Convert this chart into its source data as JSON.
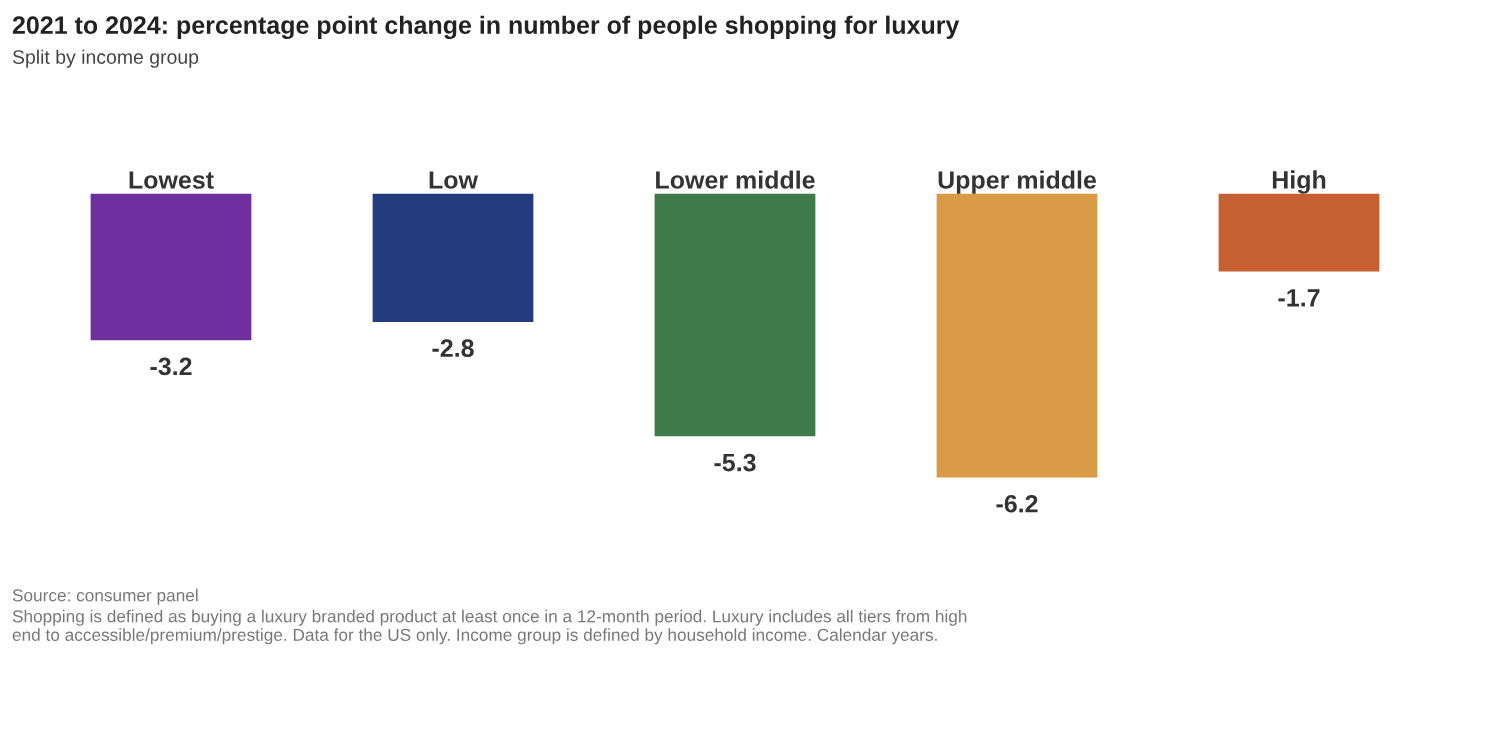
{
  "chart_data": {
    "type": "bar",
    "title": "2021 to 2024: percentage point change in number of people shopping for luxury",
    "subtitle": "Split by income group",
    "categories": [
      "Lowest",
      "Low",
      "Lower middle",
      "Upper middle",
      "High"
    ],
    "values": [
      -3.2,
      -2.8,
      -5.3,
      -6.2,
      -1.7
    ],
    "colors": [
      "#6f2f9f",
      "#233b7c",
      "#3f7a4b",
      "#d99b45",
      "#c65f31"
    ],
    "data_labels": true,
    "annotations": [
      "Source: consumer panel",
      "Shopping is defined as buying a luxury branded product at least once in a 12-month period. Luxury includes all tiers from high end to accessible/premium/prestige. Data for the US only. Income group is defined by household income. Calendar years."
    ]
  }
}
